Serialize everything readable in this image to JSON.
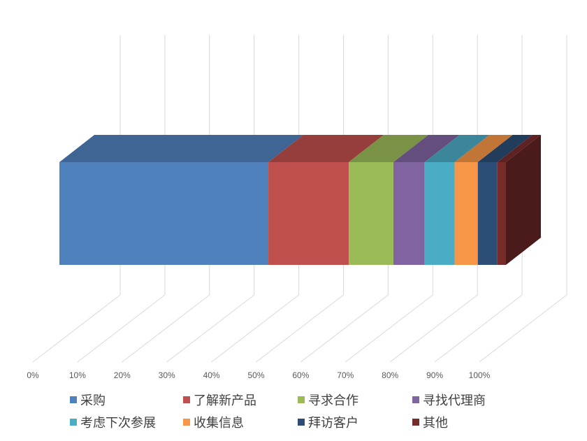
{
  "chart_data": {
    "type": "bar",
    "subtype": "3d-100%-stacked-horizontal",
    "title": "",
    "xlabel": "",
    "ylabel": "",
    "xlim": [
      0,
      100
    ],
    "grid": true,
    "legend_position": "bottom",
    "x_ticks": [
      "0%",
      "10%",
      "20%",
      "30%",
      "40%",
      "50%",
      "60%",
      "70%",
      "80%",
      "90%",
      "100%"
    ],
    "categories": [
      ""
    ],
    "series": [
      {
        "name": "采购",
        "values": [
          46.8
        ],
        "color": "#4F81BD"
      },
      {
        "name": "了解新产品",
        "values": [
          18.0
        ],
        "color": "#C0504D"
      },
      {
        "name": "寻求合作",
        "values": [
          10.0
        ],
        "color": "#9BBB59"
      },
      {
        "name": "寻找代理商",
        "values": [
          7.0
        ],
        "color": "#8064A2"
      },
      {
        "name": "考虑下次参展",
        "values": [
          6.7
        ],
        "color": "#4BACC6"
      },
      {
        "name": "收集信息",
        "values": [
          5.2
        ],
        "color": "#F79646"
      },
      {
        "name": "拜访客户",
        "values": [
          4.4
        ],
        "color": "#2C4D75"
      },
      {
        "name": "其他",
        "values": [
          1.9
        ],
        "color": "#772C2A"
      }
    ]
  },
  "legend": {
    "items": [
      {
        "label": "采购",
        "color": "#4F81BD"
      },
      {
        "label": "了解新产品",
        "color": "#C0504D"
      },
      {
        "label": "寻求合作",
        "color": "#9BBB59"
      },
      {
        "label": "寻找代理商",
        "color": "#8064A2"
      },
      {
        "label": "考虑下次参展",
        "color": "#4BACC6"
      },
      {
        "label": "收集信息",
        "color": "#F79646"
      },
      {
        "label": "拜访客户",
        "color": "#2C4D75"
      },
      {
        "label": "其他",
        "color": "#772C2A"
      }
    ]
  }
}
